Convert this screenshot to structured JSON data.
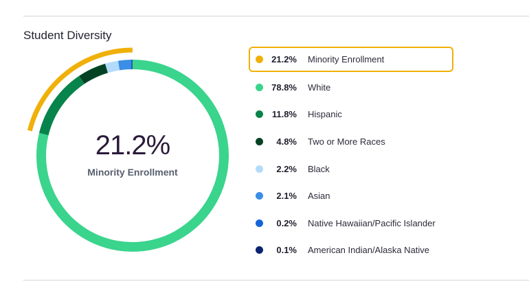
{
  "section": {
    "title": "Student Diversity"
  },
  "center": {
    "value": "21.2%",
    "label": "Minority Enrollment"
  },
  "legend": [
    {
      "pct": "21.2%",
      "label": "Minority Enrollment",
      "color": "#efb008",
      "highlight": true
    },
    {
      "pct": "78.8%",
      "label": "White",
      "color": "#3ad48d"
    },
    {
      "pct": "11.8%",
      "label": "Hispanic",
      "color": "#07844b"
    },
    {
      "pct": "4.8%",
      "label": "Two or More Races",
      "color": "#034323"
    },
    {
      "pct": "2.2%",
      "label": "Black",
      "color": "#b3dcfb"
    },
    {
      "pct": "2.1%",
      "label": "Asian",
      "color": "#3b8ee6"
    },
    {
      "pct": "0.2%",
      "label": "Native Hawaiian/Pacific Islander",
      "color": "#1565d8"
    },
    {
      "pct": "0.1%",
      "label": "American Indian/Alaska Native",
      "color": "#0a2472"
    }
  ],
  "chart_data": {
    "type": "pie",
    "title": "Student Diversity",
    "subtitle": "21.2% Minority Enrollment",
    "categories": [
      "White",
      "Hispanic",
      "Two or More Races",
      "Black",
      "Asian",
      "Native Hawaiian/Pacific Islander",
      "American Indian/Alaska Native"
    ],
    "values": [
      78.8,
      11.8,
      4.8,
      2.2,
      2.1,
      0.2,
      0.1
    ],
    "colors": [
      "#3ad48d",
      "#07844b",
      "#034323",
      "#b3dcfb",
      "#3b8ee6",
      "#1565d8",
      "#0a2472"
    ],
    "annotations": [
      {
        "label": "Minority Enrollment",
        "value": 21.2,
        "color": "#efb008",
        "style": "outer-arc"
      }
    ],
    "donut": true,
    "legend_position": "right"
  }
}
